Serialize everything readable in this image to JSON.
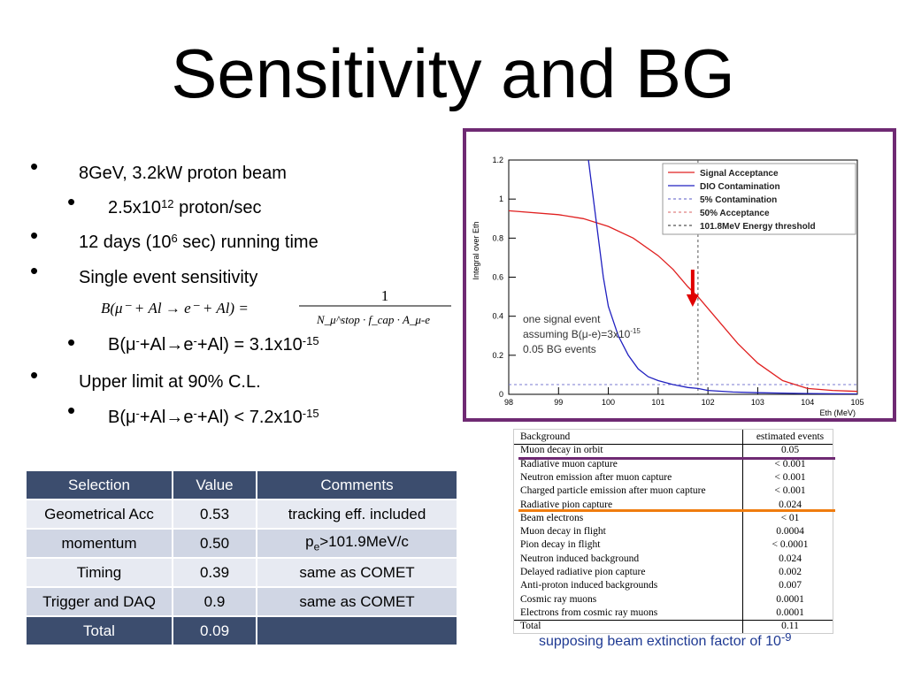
{
  "title": "Sensitivity and BG",
  "bullets": {
    "b1": "8GeV, 3.2kW proton beam",
    "b1_sub_pre": "2.5x10",
    "b1_sub_sup": "12",
    "b1_sub_post": " proton/sec",
    "b2_pre": "12 days (10",
    "b2_sup": "6",
    "b2_post": " sec) running time",
    "b3": "Single event sensitivity",
    "b3_sub_pre": "B(μ",
    "b3_sub_sup1": "-",
    "b3_sub_mid": "+Al→e",
    "b3_sub_sup2": "-",
    "b3_sub_post": "+Al) = 3.1x10",
    "b3_sub_exp": "-15",
    "b4": "Upper limit at 90% C.L.",
    "b4_sub_pre": "B(μ",
    "b4_sub_sup1": "-",
    "b4_sub_mid": "+Al→e",
    "b4_sub_sup2": "-",
    "b4_sub_post": "+Al) < 7.2x10",
    "b4_sub_exp": "-15"
  },
  "formula": {
    "lhs": "B(μ⁻ + Al → e⁻ + Al)  =",
    "num": "1",
    "den": "N_μ^stop · f_cap · A_μ-e"
  },
  "selection_table": {
    "headers": [
      "Selection",
      "Value",
      "Comments"
    ],
    "rows": [
      [
        "Geometrical Acc",
        "0.53",
        "tracking eff. included"
      ],
      [
        "momentum",
        "0.50",
        "pe>101.9MeV/c"
      ],
      [
        "Timing",
        "0.39",
        "same as COMET"
      ],
      [
        "Trigger and DAQ",
        "0.9",
        "same as COMET"
      ]
    ],
    "total_label": "Total",
    "total_value": "0.09",
    "momentum_comment_p": "p",
    "momentum_comment_sub": "e",
    "momentum_comment_rest": ">101.9MeV/c"
  },
  "bg_table": {
    "header_name": "Background",
    "header_value": "estimated events",
    "rows": [
      [
        "Muon decay in orbit",
        "0.05"
      ],
      [
        "Radiative muon capture",
        "< 0.001"
      ],
      [
        "Neutron emission after muon capture",
        "< 0.001"
      ],
      [
        "Charged particle emission after muon capture",
        "< 0.001"
      ],
      [
        "Radiative pion capture",
        "0.024"
      ],
      [
        "Beam electrons",
        "< 01"
      ],
      [
        "Muon decay in flight",
        "0.0004"
      ],
      [
        "Pion decay in flight",
        "< 0.0001"
      ],
      [
        "Neutron induced background",
        "0.024"
      ],
      [
        "Delayed radiative pion capture",
        "0.002"
      ],
      [
        "Anti-proton induced backgrounds",
        "0.007"
      ],
      [
        "Cosmic ray muons",
        "0.0001"
      ],
      [
        "Electrons from cosmic ray muons",
        "0.0001"
      ]
    ],
    "total_label": "Total",
    "total_value": "0.11"
  },
  "footnote_pre": "supposing  beam extinction factor of 10",
  "footnote_exp": "-9",
  "chart_data": {
    "type": "line",
    "ylabel": "Integral over Eth",
    "xlabel": "Eth (MeV)",
    "xlim": [
      98,
      105
    ],
    "ylim": [
      0,
      1.2
    ],
    "x_ticks": [
      "98",
      "99",
      "100",
      "101",
      "102",
      "103",
      "104",
      "105"
    ],
    "y_ticks": [
      "0",
      "0.2",
      "0.4",
      "0.6",
      "0.8",
      "1",
      "1.2"
    ],
    "legend_position": "top-right",
    "legend": [
      "Signal Acceptance",
      "DIO Contamination",
      "5% Contamination",
      "50% Acceptance",
      "101.8MeV Energy threshold"
    ],
    "series": [
      {
        "name": "Signal Acceptance",
        "color": "#e02020",
        "x": [
          98,
          99,
          99.5,
          100,
          100.5,
          101,
          101.3,
          101.6,
          101.8,
          102,
          102.3,
          102.6,
          103,
          103.5,
          104,
          104.5,
          105
        ],
        "y": [
          0.94,
          0.92,
          0.9,
          0.86,
          0.8,
          0.71,
          0.64,
          0.55,
          0.5,
          0.44,
          0.35,
          0.26,
          0.16,
          0.07,
          0.03,
          0.02,
          0.015
        ]
      },
      {
        "name": "DIO Contamination",
        "color": "#2020c0",
        "x": [
          99.6,
          99.75,
          99.9,
          100,
          100.2,
          100.4,
          100.6,
          100.8,
          101,
          101.3,
          101.6,
          101.8,
          102,
          102.5,
          103,
          104,
          105
        ],
        "y": [
          1.2,
          0.9,
          0.6,
          0.45,
          0.3,
          0.2,
          0.13,
          0.09,
          0.07,
          0.05,
          0.035,
          0.03,
          0.02,
          0.012,
          0.008,
          0.004,
          0.002
        ]
      }
    ],
    "contamination_level": 0.05,
    "acceptance_level": 0.5,
    "threshold_mev": 101.8,
    "annotation": {
      "line1": "one signal event",
      "line2_pre": "assuming B(μ-e)=3x10",
      "line2_exp": "-15",
      "line3": "0.05 BG events"
    }
  }
}
